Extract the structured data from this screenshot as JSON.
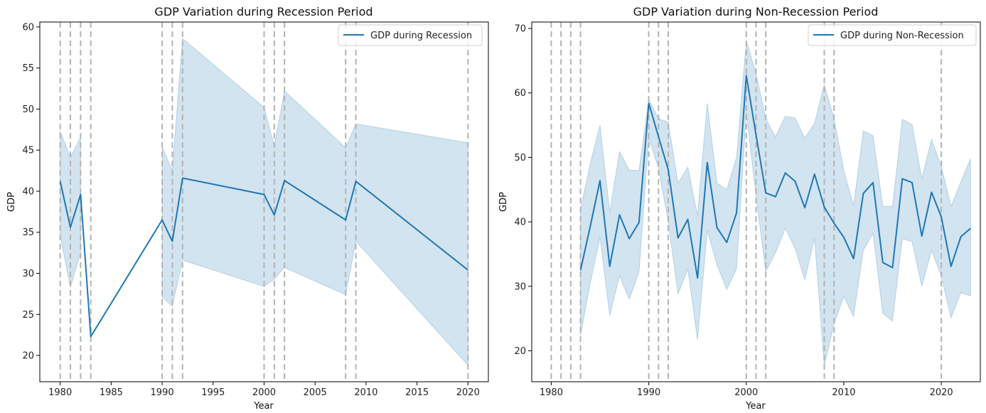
{
  "chart_data": [
    {
      "type": "line",
      "title": "GDP Variation during Recession Period",
      "xlabel": "Year",
      "ylabel": "GDP",
      "xlim": [
        1978,
        2022
      ],
      "ylim": [
        16.8,
        60.6
      ],
      "xticks": [
        1980,
        1985,
        1990,
        1995,
        2000,
        2005,
        2010,
        2015,
        2020
      ],
      "yticks": [
        20,
        25,
        30,
        35,
        40,
        45,
        50,
        55,
        60
      ],
      "legend": "top-right",
      "grid": false,
      "dashed_vlines": [
        1980,
        1981,
        1982,
        1983,
        1990,
        1991,
        1992,
        2000,
        2001,
        2002,
        2008,
        2009,
        2020
      ],
      "series": [
        {
          "name": "GDP during Recession",
          "color": "#1f77b4",
          "x": [
            1980,
            1981,
            1982,
            1983,
            1990,
            1991,
            1992,
            2000,
            2001,
            2002,
            2008,
            2009,
            2020
          ],
          "y": [
            41.2,
            35.6,
            39.6,
            22.3,
            36.5,
            33.9,
            41.6,
            39.6,
            37.1,
            41.3,
            36.5,
            41.2,
            30.4
          ],
          "ci_upper": [
            47.3,
            44.1,
            46.6,
            null,
            45.4,
            42.5,
            58.6,
            50.2,
            45.5,
            52.2,
            45.3,
            48.2,
            45.9
          ],
          "ci_lower": [
            34.6,
            28.3,
            32.5,
            null,
            27.1,
            26.0,
            31.6,
            28.4,
            29.3,
            30.7,
            27.4,
            33.9,
            18.8
          ]
        }
      ]
    },
    {
      "type": "line",
      "title": "GDP Variation during Non-Recession Period",
      "xlabel": "Year",
      "ylabel": "GDP",
      "xlim": [
        1978,
        2024
      ],
      "ylim": [
        15.2,
        71.0
      ],
      "xticks": [
        1980,
        1990,
        2000,
        2010,
        2020
      ],
      "yticks": [
        20,
        30,
        40,
        50,
        60,
        70
      ],
      "legend": "top-right",
      "grid": false,
      "dashed_vlines": [
        1980,
        1981,
        1982,
        1983,
        1990,
        1991,
        1992,
        2000,
        2001,
        2002,
        2008,
        2009,
        2020
      ],
      "series": [
        {
          "name": "GDP during Non-Recession",
          "color": "#1f77b4",
          "x": [
            1983,
            1984,
            1985,
            1986,
            1987,
            1988,
            1989,
            1990,
            1991,
            1992,
            1993,
            1994,
            1995,
            1996,
            1997,
            1998,
            1999,
            2000,
            2001,
            2002,
            2003,
            2004,
            2005,
            2006,
            2007,
            2008,
            2009,
            2010,
            2011,
            2012,
            2013,
            2014,
            2015,
            2016,
            2017,
            2018,
            2019,
            2020,
            2021,
            2022,
            2023
          ],
          "y": [
            32.5,
            39.3,
            46.4,
            33.1,
            41.1,
            37.4,
            39.9,
            58.4,
            53.2,
            48.1,
            37.5,
            40.4,
            31.3,
            49.2,
            39.1,
            36.8,
            41.4,
            62.7,
            53.5,
            44.5,
            43.9,
            47.6,
            46.3,
            42.2,
            47.4,
            42.3,
            39.8,
            37.6,
            34.3,
            44.4,
            46.1,
            33.7,
            32.9,
            46.7,
            46.1,
            37.8,
            44.6,
            40.8,
            33.1,
            37.7,
            39.0
          ],
          "ci_upper": [
            42.0,
            49.0,
            55.0,
            41.5,
            50.9,
            48.0,
            48.0,
            59.0,
            56.0,
            55.5,
            46.0,
            48.5,
            41.0,
            58.4,
            46.0,
            45.0,
            50.0,
            68.1,
            63.0,
            56.0,
            53.2,
            56.4,
            56.1,
            53.0,
            55.3,
            61.3,
            56.0,
            48.0,
            42.5,
            54.1,
            53.4,
            42.4,
            42.4,
            55.9,
            55.1,
            46.7,
            52.8,
            48.6,
            42.4,
            46.2,
            49.8
          ],
          "ci_lower": [
            22.4,
            30.5,
            37.6,
            25.5,
            31.6,
            28.0,
            32.2,
            53.0,
            48.3,
            40.0,
            28.8,
            32.7,
            21.7,
            38.7,
            33.3,
            29.5,
            32.7,
            57.0,
            44.0,
            32.3,
            35.2,
            39.0,
            35.9,
            31.0,
            37.5,
            17.6,
            24.2,
            28.4,
            25.3,
            35.6,
            38.2,
            25.8,
            24.6,
            37.4,
            36.9,
            30.0,
            35.6,
            31.6,
            25.1,
            29.0,
            28.5
          ]
        }
      ]
    }
  ]
}
